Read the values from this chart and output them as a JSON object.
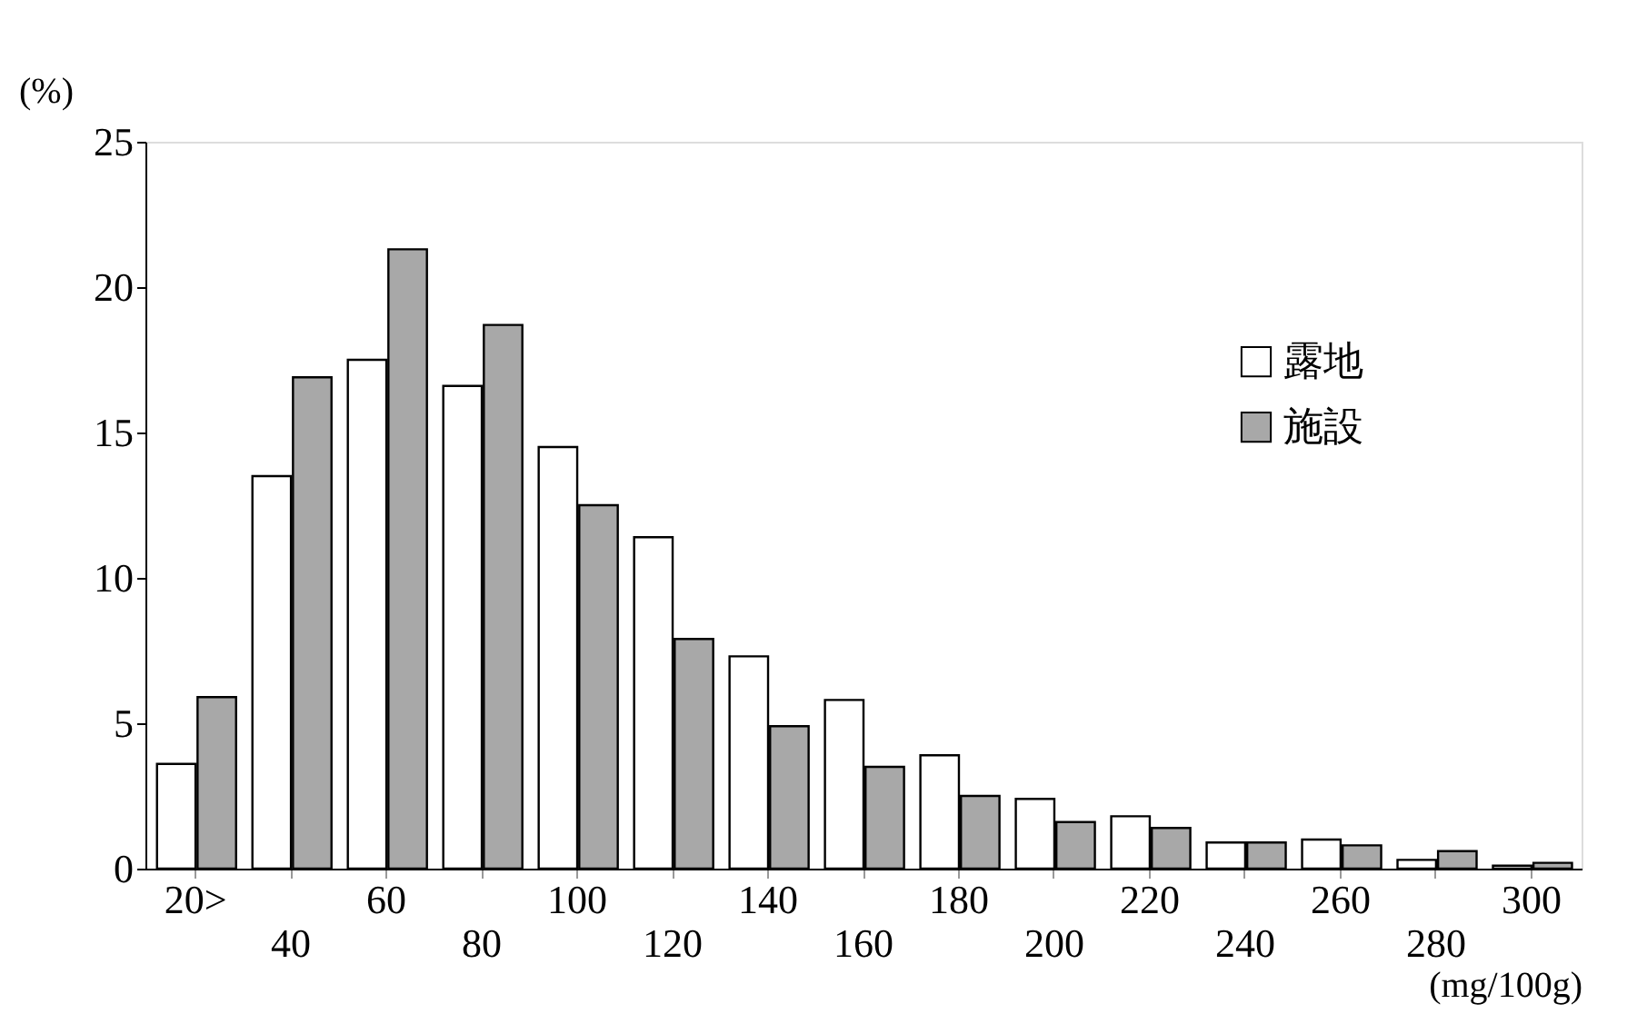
{
  "chart_data": {
    "type": "bar",
    "ylabel": "(%)",
    "xlabel": "(mg/100g)",
    "categories": [
      "20>",
      "40",
      "60",
      "80",
      "100",
      "120",
      "140",
      "160",
      "180",
      "200",
      "220",
      "240",
      "260",
      "280",
      "300"
    ],
    "series": [
      {
        "name": "露地",
        "color": "#ffffff",
        "values": [
          3.6,
          13.5,
          17.5,
          16.6,
          14.5,
          11.4,
          7.3,
          5.8,
          3.9,
          2.4,
          1.8,
          0.9,
          1.0,
          0.3,
          0.1
        ]
      },
      {
        "name": "施設",
        "color": "#a8a8a8",
        "values": [
          5.9,
          16.9,
          21.3,
          18.7,
          12.5,
          7.9,
          4.9,
          3.5,
          2.5,
          1.6,
          1.4,
          0.9,
          0.8,
          0.6,
          0.2
        ]
      }
    ],
    "ylim": [
      0,
      25
    ],
    "yticks": [
      0,
      5,
      10,
      15,
      20,
      25
    ],
    "grid": false,
    "legend": "top right"
  }
}
